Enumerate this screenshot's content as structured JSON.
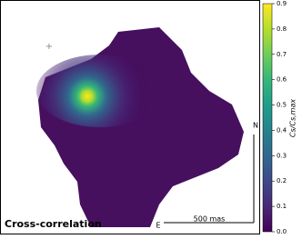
{
  "chart_data": {
    "type": "heatmap",
    "colorbar_label": "Cs/Cs,max",
    "ylim": [
      0,
      0.9
    ],
    "yticks": [
      {
        "value": 0,
        "label": "0.0"
      },
      0.1,
      0.2,
      0.3,
      0.4,
      0.5,
      0.6,
      0.7,
      0.8,
      0.9
    ],
    "colormap": [
      "#440154",
      "#482878",
      "#3e4989",
      "#31688e",
      "#26828e",
      "#1f9e89",
      "#35b779",
      "#6ece58",
      "#b5de2b",
      "#fde725"
    ],
    "annotations": {
      "label": "Cross-correlation",
      "north": "N",
      "east": "E",
      "scale": "500 mas"
    }
  }
}
